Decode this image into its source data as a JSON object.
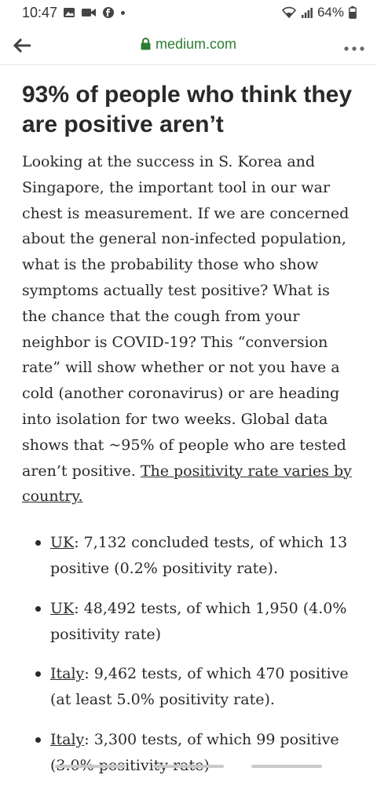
{
  "status": {
    "time": "10:47",
    "battery": "64%"
  },
  "browser": {
    "url": "medium.com"
  },
  "article": {
    "headline": "93% of people who think they are positive aren’t",
    "paragraph": "Looking at the success in S. Korea and Singapore, the important tool in our war chest is measurement. If we are concerned about the general non-infected population, what is the probability those who show symptoms actually test positive? What is the chance that the cough from your neighbor is COVID-19? This “conversion rate” will show whether or not you have a cold (another coronavirus) or are heading into isolation for two weeks. Global data shows that ~95% of people who are tested aren’t positive. ",
    "link_text": "The positivity rate varies by country.",
    "bullets": [
      {
        "country": "UK",
        "text": ": 7,132 concluded tests, of which 13 positive (0.2% positivity rate)."
      },
      {
        "country": "UK",
        "text": ": 48,492 tests, of which 1,950 (4.0% positivity rate)"
      },
      {
        "country": "Italy",
        "text": ": 9,462 tests, of which 470 positive (at least 5.0% positivity rate)."
      },
      {
        "country": "Italy",
        "text": ": 3,300 tests, of which 99 positive (3.0% positivity rate)"
      }
    ]
  }
}
